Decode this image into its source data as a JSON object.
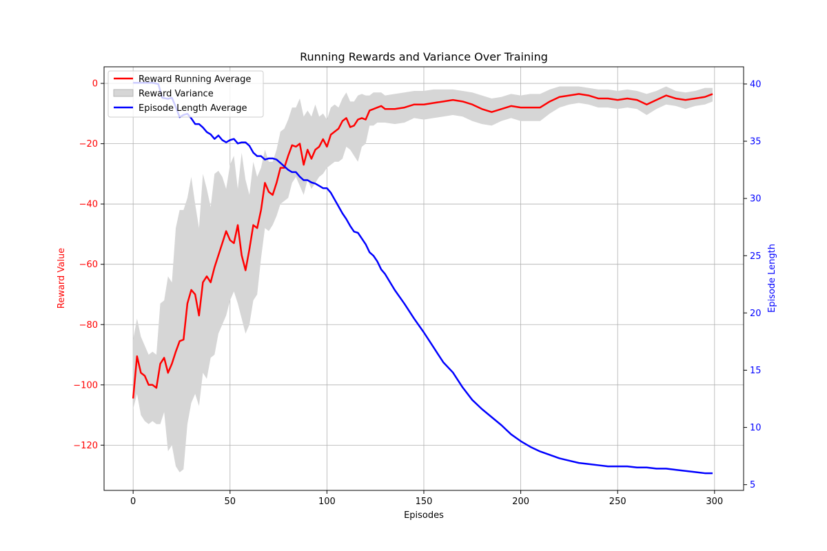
{
  "chart_data": {
    "type": "line",
    "title": "Running Rewards and Variance Over Training",
    "xlabel": "Episodes",
    "ylabel_left": "Reward Value",
    "ylabel_right": "Episode Length",
    "xlim": [
      -15,
      315
    ],
    "ylim_left": [
      -135,
      5.5
    ],
    "ylim_right": [
      4.5,
      41.5
    ],
    "xticks": [
      0,
      50,
      100,
      150,
      200,
      250,
      300
    ],
    "yticks_left": [
      0,
      -20,
      -40,
      -60,
      -80,
      -100,
      -120
    ],
    "yticks_right": [
      40,
      35,
      30,
      25,
      20,
      15,
      10,
      5
    ],
    "grid": true,
    "legend_position": "top-left",
    "colors": {
      "reward": "#ff0000",
      "variance": "#d6d6d6",
      "length": "#0000ff",
      "left_axis": "#ff0000",
      "right_axis": "#0000ff"
    },
    "legend": [
      {
        "key": "reward",
        "label": "Reward Running Average",
        "kind": "line"
      },
      {
        "key": "variance",
        "label": "Reward Variance",
        "kind": "patch"
      },
      {
        "key": "length",
        "label": "Episode Length Average",
        "kind": "line"
      }
    ],
    "series": [
      {
        "name": "Reward Running Average",
        "axis": "left",
        "x": [
          0,
          2,
          4,
          6,
          8,
          10,
          12,
          14,
          16,
          18,
          20,
          22,
          24,
          26,
          28,
          30,
          32,
          34,
          36,
          38,
          40,
          42,
          44,
          46,
          48,
          50,
          52,
          54,
          56,
          58,
          60,
          62,
          64,
          66,
          68,
          70,
          72,
          74,
          76,
          78,
          80,
          82,
          84,
          86,
          88,
          90,
          92,
          94,
          96,
          98,
          100,
          102,
          104,
          106,
          108,
          110,
          112,
          114,
          116,
          118,
          120,
          122,
          124,
          126,
          128,
          130,
          135,
          140,
          145,
          150,
          155,
          160,
          165,
          170,
          175,
          180,
          185,
          190,
          195,
          200,
          205,
          210,
          215,
          220,
          225,
          230,
          235,
          240,
          245,
          250,
          255,
          260,
          265,
          270,
          275,
          280,
          285,
          290,
          295,
          299
        ],
        "values": [
          -104.5,
          -90.5,
          -96,
          -97,
          -100,
          -100,
          -101,
          -93,
          -91,
          -96,
          -93,
          -89,
          -85.5,
          -85,
          -73,
          -68.5,
          -70,
          -77,
          -66,
          -64,
          -66,
          -61,
          -57,
          -53,
          -49,
          -52,
          -53,
          -47,
          -57,
          -62,
          -55,
          -47,
          -48,
          -42,
          -33,
          -36,
          -37,
          -33,
          -28,
          -28,
          -24,
          -20.5,
          -21,
          -20,
          -27,
          -22,
          -25,
          -22,
          -21,
          -18.5,
          -21,
          -17,
          -16,
          -15,
          -12.5,
          -11.5,
          -14.5,
          -14,
          -12,
          -11.5,
          -12,
          -9,
          -8.5,
          -8,
          -7.5,
          -8.5,
          -8.5,
          -8,
          -7,
          -7,
          -6.5,
          -6,
          -5.5,
          -6,
          -7,
          -8.5,
          -9.5,
          -8.5,
          -7.5,
          -8,
          -8,
          -8,
          -6,
          -4.5,
          -4,
          -3.5,
          -4,
          -5,
          -5,
          -5.5,
          -5,
          -5.5,
          -7,
          -5.5,
          -4,
          -5,
          -5.5,
          -5,
          -4.5,
          -3.5
        ]
      },
      {
        "name": "Reward Variance",
        "axis": "left",
        "x": [
          0,
          2,
          4,
          6,
          8,
          10,
          12,
          14,
          16,
          18,
          20,
          22,
          24,
          26,
          28,
          30,
          32,
          34,
          36,
          38,
          40,
          42,
          44,
          46,
          48,
          50,
          52,
          54,
          56,
          58,
          60,
          62,
          64,
          66,
          68,
          70,
          72,
          74,
          76,
          78,
          80,
          82,
          84,
          86,
          88,
          90,
          92,
          94,
          96,
          98,
          100,
          102,
          104,
          106,
          108,
          110,
          112,
          114,
          116,
          118,
          120,
          122,
          124,
          126,
          128,
          130,
          135,
          140,
          145,
          150,
          155,
          160,
          165,
          170,
          175,
          180,
          185,
          190,
          195,
          200,
          205,
          210,
          215,
          220,
          225,
          230,
          235,
          240,
          245,
          250,
          255,
          260,
          265,
          270,
          275,
          280,
          285,
          290,
          295,
          299
        ],
        "upper": [
          -85,
          -78,
          -84,
          -87,
          -90,
          -89,
          -90,
          -73,
          -72,
          -64,
          -66,
          -48,
          -42,
          -42,
          -38,
          -31,
          -40,
          -48,
          -30,
          -35,
          -41,
          -30,
          -29,
          -31,
          -35,
          -27,
          -24,
          -35,
          -23,
          -32,
          -37,
          -26,
          -31,
          -28,
          -22,
          -26,
          -26,
          -22,
          -16,
          -15,
          -12,
          -8,
          -8,
          -5,
          -11,
          -9,
          -11,
          -7,
          -11,
          -10,
          -12,
          -8,
          -7,
          -8,
          -5,
          -3,
          -6,
          -6,
          -4,
          -3.5,
          -4,
          -4,
          -3,
          -3,
          -3,
          -4,
          -3.5,
          -3,
          -2.5,
          -2.5,
          -2,
          -2,
          -2,
          -2.5,
          -3,
          -4,
          -5,
          -4.5,
          -3.5,
          -4,
          -3.5,
          -3.5,
          -2,
          -1,
          -1,
          -1,
          -1.5,
          -2,
          -2,
          -2.5,
          -2,
          -2.5,
          -3.5,
          -2.5,
          -1,
          -2.5,
          -3,
          -2.5,
          -1.5,
          -1.5
        ],
        "lower": [
          -108,
          -103,
          -110,
          -112,
          -113,
          -112,
          -113,
          -113,
          -109,
          -122,
          -120,
          -127,
          -129,
          -128,
          -113,
          -106,
          -103,
          -107,
          -96,
          -98,
          -91,
          -90,
          -83,
          -80,
          -77,
          -72,
          -69,
          -73,
          -78,
          -83,
          -80,
          -72,
          -70,
          -58,
          -48,
          -49,
          -47,
          -44,
          -40,
          -39,
          -38,
          -33,
          -31,
          -34,
          -37,
          -32,
          -35,
          -33,
          -31,
          -30,
          -28,
          -27,
          -26,
          -26,
          -25,
          -21,
          -22,
          -24,
          -26,
          -21,
          -20,
          -14,
          -14,
          -13,
          -13,
          -13,
          -13.5,
          -13,
          -11.5,
          -12,
          -11.5,
          -11,
          -10.5,
          -11,
          -12.5,
          -13.5,
          -14,
          -12.5,
          -11.5,
          -12.5,
          -12.5,
          -12.5,
          -10,
          -8,
          -7,
          -6.5,
          -7,
          -8,
          -8,
          -8.5,
          -8,
          -8.5,
          -10.5,
          -8.5,
          -7,
          -7.5,
          -8.5,
          -7.5,
          -7,
          -6
        ]
      },
      {
        "name": "Episode Length Average",
        "axis": "right",
        "x": [
          0,
          5,
          10,
          13,
          15,
          18,
          20,
          22,
          24,
          26,
          28,
          30,
          32,
          34,
          36,
          38,
          40,
          42,
          44,
          46,
          48,
          50,
          52,
          54,
          56,
          58,
          60,
          62,
          64,
          66,
          68,
          70,
          72,
          74,
          76,
          78,
          80,
          82,
          84,
          86,
          88,
          90,
          92,
          94,
          96,
          98,
          100,
          102,
          104,
          106,
          108,
          110,
          112,
          114,
          116,
          118,
          120,
          122,
          124,
          126,
          128,
          130,
          135,
          140,
          145,
          150,
          155,
          160,
          165,
          170,
          175,
          180,
          185,
          190,
          195,
          200,
          205,
          210,
          215,
          220,
          225,
          230,
          235,
          240,
          245,
          250,
          255,
          260,
          265,
          270,
          275,
          280,
          285,
          290,
          295,
          299
        ],
        "values": [
          40.1,
          40.1,
          40.1,
          40,
          38.8,
          38.7,
          38.8,
          38,
          37.1,
          37.3,
          37.4,
          37,
          36.5,
          36.5,
          36.2,
          35.8,
          35.6,
          35.2,
          35.5,
          35.1,
          34.9,
          35.1,
          35.2,
          34.8,
          34.9,
          34.9,
          34.6,
          34,
          33.7,
          33.7,
          33.4,
          33.5,
          33.5,
          33.4,
          33.1,
          32.8,
          32.5,
          32.3,
          32.3,
          31.9,
          31.6,
          31.6,
          31.4,
          31.3,
          31.1,
          30.9,
          30.9,
          30.5,
          29.9,
          29.3,
          28.7,
          28.2,
          27.6,
          27.1,
          27,
          26.5,
          26,
          25.3,
          25,
          24.5,
          23.8,
          23.4,
          22,
          20.8,
          19.5,
          18.3,
          17,
          15.7,
          14.8,
          13.5,
          12.4,
          11.6,
          10.9,
          10.2,
          9.4,
          8.8,
          8.3,
          7.9,
          7.6,
          7.3,
          7.1,
          6.9,
          6.8,
          6.7,
          6.6,
          6.6,
          6.6,
          6.5,
          6.5,
          6.4,
          6.4,
          6.3,
          6.2,
          6.1,
          6,
          6
        ]
      }
    ]
  }
}
